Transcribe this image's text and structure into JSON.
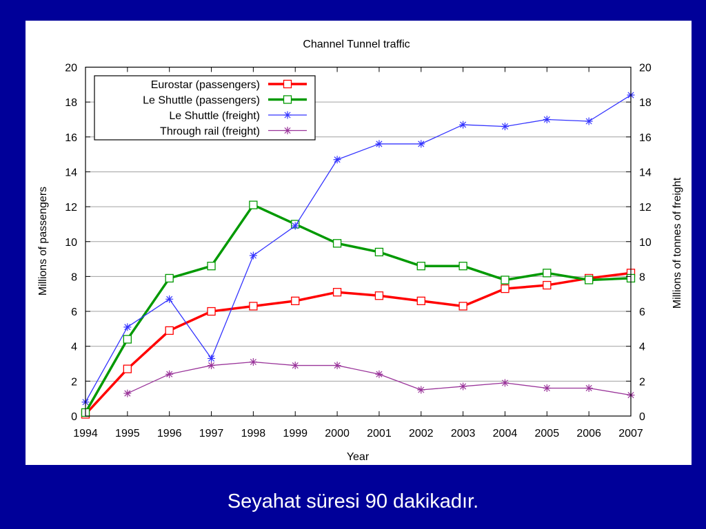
{
  "slide": {
    "caption": "Seyahat süresi 90 dakikadır.",
    "background_color": "#000099"
  },
  "chart_data": {
    "type": "line",
    "title": "Channel Tunnel traffic",
    "xlabel": "Year",
    "ylabel": "Millions of passengers",
    "y2label": "Millions of tonnes of freight",
    "x": [
      1994,
      1995,
      1996,
      1997,
      1998,
      1999,
      2000,
      2001,
      2002,
      2003,
      2004,
      2005,
      2006,
      2007
    ],
    "x_tick_labels": [
      "1994",
      "1995",
      "1996",
      "1997",
      "1998",
      "1999",
      "2000",
      "2001",
      "2002",
      "2003",
      "2004",
      "2005",
      "2006",
      "2007"
    ],
    "xlim": [
      1994,
      2007
    ],
    "ylim": [
      0,
      20
    ],
    "y2lim": [
      0,
      20
    ],
    "y_ticks": [
      0,
      2,
      4,
      6,
      8,
      10,
      12,
      14,
      16,
      18,
      20
    ],
    "y_tick_labels": [
      "0",
      "2",
      "4",
      "6",
      "8",
      "10",
      "12",
      "14",
      "16",
      "18",
      "20"
    ],
    "y2_tick_labels": [
      "0",
      "2",
      "4",
      "6",
      "8",
      "10",
      "12",
      "14",
      "16",
      "18",
      "20"
    ],
    "grid": true,
    "legend_position": "top-left",
    "series": [
      {
        "name": "Eurostar (passengers)",
        "axis": "left",
        "color": "#ff0000",
        "marker": "square",
        "thick": true,
        "values": [
          0.1,
          2.7,
          4.9,
          6.0,
          6.3,
          6.6,
          7.1,
          6.9,
          6.6,
          6.3,
          7.3,
          7.5,
          7.9,
          8.2
        ]
      },
      {
        "name": "Le Shuttle (passengers)",
        "axis": "left",
        "color": "#009900",
        "marker": "square",
        "thick": true,
        "values": [
          0.2,
          4.4,
          7.9,
          8.6,
          12.1,
          11.0,
          9.9,
          9.4,
          8.6,
          8.6,
          7.8,
          8.2,
          7.8,
          7.9
        ]
      },
      {
        "name": "Le Shuttle (freight)",
        "axis": "right",
        "color": "#3333ff",
        "marker": "star",
        "thick": false,
        "values": [
          0.8,
          5.1,
          6.7,
          3.3,
          9.2,
          10.9,
          14.7,
          15.6,
          15.6,
          16.7,
          16.6,
          17.0,
          16.9,
          18.4
        ]
      },
      {
        "name": "Through rail (freight)",
        "axis": "right",
        "color": "#993399",
        "marker": "star",
        "thick": false,
        "x": [
          1995,
          1996,
          1997,
          1998,
          1999,
          2000,
          2001,
          2002,
          2003,
          2004,
          2005,
          2006,
          2007
        ],
        "values": [
          1.3,
          2.4,
          2.9,
          3.1,
          2.9,
          2.9,
          2.4,
          1.5,
          1.7,
          1.9,
          1.6,
          1.6,
          1.2
        ]
      }
    ]
  }
}
